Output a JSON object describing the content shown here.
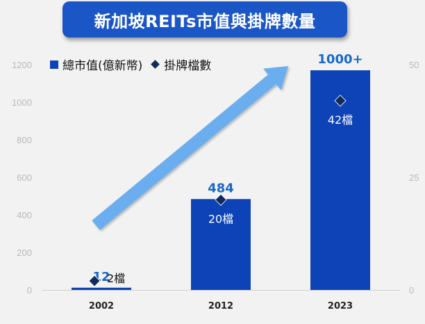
{
  "title": "新加坡REITs市值與掛牌數量",
  "legend": {
    "market_cap": "總市值(億新幣)",
    "listings": "掛牌檔數"
  },
  "colors": {
    "bar": "#0d43b7",
    "diamond": "#102a5c",
    "value_label": "#1868c8",
    "arrow": "#6aaef0",
    "banner": "#1b56c7"
  },
  "chart_data": {
    "type": "bar",
    "title": "新加坡REITs市值與掛牌數量",
    "categories": [
      "2002",
      "2012",
      "2023"
    ],
    "series": [
      {
        "name": "總市值(億新幣)",
        "type": "bar",
        "axis": "left",
        "values": [
          12,
          484,
          1170
        ],
        "labels": [
          "12",
          "484",
          "1000+"
        ]
      },
      {
        "name": "掛牌檔數",
        "type": "scatter",
        "marker": "diamond",
        "axis": "right",
        "values": [
          2,
          20,
          42
        ],
        "labels": [
          "2檔",
          "20檔",
          "42檔"
        ]
      }
    ],
    "y_left": {
      "min": 0,
      "max": 1200,
      "ticks": [
        0,
        200,
        400,
        600,
        800,
        1000,
        1200
      ],
      "tick_labels": [
        "0",
        "200",
        "400",
        "600",
        "800",
        "1000",
        "1200"
      ]
    },
    "y_right": {
      "min": 0,
      "max": 50,
      "ticks": [
        0,
        25,
        50
      ],
      "tick_labels": [
        "0",
        "25",
        "50"
      ]
    },
    "grid": false,
    "legend_position": "top-left",
    "annotation": "upward trend arrow from 2002 to 2023"
  }
}
